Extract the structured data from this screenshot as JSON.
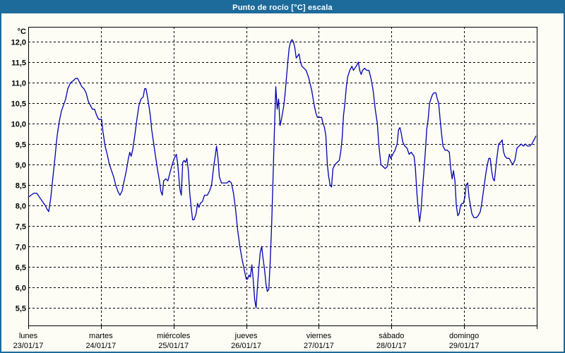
{
  "window": {
    "title": "Punto de rocío [°C] escala"
  },
  "colors": {
    "titlebar": "#1d6b9b",
    "frame_border": "#1d6b9b",
    "background": "#fdfdf6",
    "plot_background": "#fdfdf6",
    "grid": "#000000",
    "axis": "#000000",
    "line": "#0000b0",
    "text": "#000000",
    "title_text": "#ffffff"
  },
  "chart_data": {
    "type": "line",
    "title": "Punto de rocío [°C] escala",
    "y_unit_label": "°C",
    "ylabel": "",
    "xlabel": "",
    "ylim": [
      5.14,
      12.36
    ],
    "xlim_days": [
      0,
      7
    ],
    "grid": "dashed",
    "legend_position": "none",
    "y_ticks": [
      {
        "value": 12.0,
        "label": "12,0"
      },
      {
        "value": 11.5,
        "label": "11,5"
      },
      {
        "value": 11.0,
        "label": "11,0"
      },
      {
        "value": 10.5,
        "label": "10,5"
      },
      {
        "value": 10.0,
        "label": "10,0"
      },
      {
        "value": 9.5,
        "label": "9,5"
      },
      {
        "value": 9.0,
        "label": "9,0"
      },
      {
        "value": 8.5,
        "label": "8,5"
      },
      {
        "value": 8.0,
        "label": "8,0"
      },
      {
        "value": 7.5,
        "label": "7,5"
      },
      {
        "value": 7.0,
        "label": "7,0"
      },
      {
        "value": 6.5,
        "label": "6,5"
      },
      {
        "value": 6.0,
        "label": "6,0"
      },
      {
        "value": 5.5,
        "label": "5,5"
      }
    ],
    "x_ticks": [
      {
        "day": "lunes",
        "date": "23/01/17"
      },
      {
        "day": "martes",
        "date": "24/01/17"
      },
      {
        "day": "miércoles",
        "date": "25/01/17"
      },
      {
        "day": "jueves",
        "date": "26/01/17"
      },
      {
        "day": "viernes",
        "date": "27/01/17"
      },
      {
        "day": "sábado",
        "date": "28/01/17"
      },
      {
        "day": "domingo",
        "date": "29/01/17"
      }
    ],
    "series": [
      {
        "name": "Punto de rocío [°C]",
        "color": "#0000b0",
        "x_unit": "days_since_2017-01-23",
        "points": [
          [
            0.0,
            8.2
          ],
          [
            0.039,
            8.25
          ],
          [
            0.078,
            8.3
          ],
          [
            0.117,
            8.3
          ],
          [
            0.155,
            8.2
          ],
          [
            0.194,
            8.1
          ],
          [
            0.233,
            8.0
          ],
          [
            0.262,
            7.9
          ],
          [
            0.282,
            7.85
          ],
          [
            0.311,
            8.2
          ],
          [
            0.34,
            8.7
          ],
          [
            0.369,
            9.2
          ],
          [
            0.398,
            9.7
          ],
          [
            0.427,
            10.05
          ],
          [
            0.456,
            10.3
          ],
          [
            0.485,
            10.45
          ],
          [
            0.515,
            10.6
          ],
          [
            0.544,
            10.85
          ],
          [
            0.583,
            11.0
          ],
          [
            0.621,
            11.05
          ],
          [
            0.65,
            11.1
          ],
          [
            0.68,
            11.1
          ],
          [
            0.709,
            11.0
          ],
          [
            0.738,
            10.9
          ],
          [
            0.767,
            10.85
          ],
          [
            0.796,
            10.75
          ],
          [
            0.825,
            10.55
          ],
          [
            0.854,
            10.45
          ],
          [
            0.883,
            10.35
          ],
          [
            0.913,
            10.35
          ],
          [
            0.942,
            10.2
          ],
          [
            0.971,
            10.1
          ],
          [
            1.01,
            10.1
          ],
          [
            1.029,
            9.8
          ],
          [
            1.058,
            9.45
          ],
          [
            1.087,
            9.25
          ],
          [
            1.117,
            9.0
          ],
          [
            1.146,
            8.85
          ],
          [
            1.175,
            8.7
          ],
          [
            1.204,
            8.5
          ],
          [
            1.233,
            8.35
          ],
          [
            1.262,
            8.25
          ],
          [
            1.291,
            8.35
          ],
          [
            1.32,
            8.6
          ],
          [
            1.35,
            8.85
          ],
          [
            1.379,
            9.15
          ],
          [
            1.398,
            9.3
          ],
          [
            1.417,
            9.2
          ],
          [
            1.437,
            9.35
          ],
          [
            1.466,
            9.7
          ],
          [
            1.495,
            10.1
          ],
          [
            1.524,
            10.45
          ],
          [
            1.553,
            10.6
          ],
          [
            1.583,
            10.65
          ],
          [
            1.602,
            10.85
          ],
          [
            1.621,
            10.85
          ],
          [
            1.641,
            10.65
          ],
          [
            1.66,
            10.45
          ],
          [
            1.68,
            10.2
          ],
          [
            1.699,
            9.85
          ],
          [
            1.728,
            9.5
          ],
          [
            1.748,
            9.25
          ],
          [
            1.777,
            8.9
          ],
          [
            1.806,
            8.6
          ],
          [
            1.825,
            8.35
          ],
          [
            1.845,
            8.25
          ],
          [
            1.864,
            8.6
          ],
          [
            1.893,
            8.65
          ],
          [
            1.922,
            8.6
          ],
          [
            1.951,
            8.8
          ],
          [
            1.981,
            9.0
          ],
          [
            2.01,
            9.15
          ],
          [
            2.039,
            9.25
          ],
          [
            2.058,
            9.0
          ],
          [
            2.087,
            8.4
          ],
          [
            2.107,
            8.25
          ],
          [
            2.126,
            9.05
          ],
          [
            2.146,
            9.1
          ],
          [
            2.165,
            9.05
          ],
          [
            2.184,
            9.15
          ],
          [
            2.204,
            8.85
          ],
          [
            2.223,
            8.3
          ],
          [
            2.243,
            7.95
          ],
          [
            2.262,
            7.65
          ],
          [
            2.282,
            7.65
          ],
          [
            2.311,
            7.8
          ],
          [
            2.33,
            8.05
          ],
          [
            2.35,
            7.95
          ],
          [
            2.369,
            8.05
          ],
          [
            2.398,
            8.1
          ],
          [
            2.427,
            8.25
          ],
          [
            2.466,
            8.25
          ],
          [
            2.495,
            8.35
          ],
          [
            2.524,
            8.5
          ],
          [
            2.553,
            8.95
          ],
          [
            2.573,
            9.2
          ],
          [
            2.592,
            9.45
          ],
          [
            2.612,
            9.15
          ],
          [
            2.631,
            8.7
          ],
          [
            2.66,
            8.55
          ],
          [
            2.699,
            8.55
          ],
          [
            2.738,
            8.55
          ],
          [
            2.767,
            8.6
          ],
          [
            2.796,
            8.55
          ],
          [
            2.825,
            8.3
          ],
          [
            2.854,
            7.9
          ],
          [
            2.883,
            7.4
          ],
          [
            2.913,
            7.0
          ],
          [
            2.942,
            6.7
          ],
          [
            2.971,
            6.45
          ],
          [
            3.0,
            6.2
          ],
          [
            3.019,
            6.2
          ],
          [
            3.039,
            6.3
          ],
          [
            3.058,
            6.25
          ],
          [
            3.078,
            6.55
          ],
          [
            3.097,
            6.2
          ],
          [
            3.117,
            5.7
          ],
          [
            3.136,
            5.5
          ],
          [
            3.155,
            6.0
          ],
          [
            3.175,
            6.5
          ],
          [
            3.194,
            6.85
          ],
          [
            3.214,
            7.0
          ],
          [
            3.233,
            6.7
          ],
          [
            3.252,
            6.45
          ],
          [
            3.272,
            6.1
          ],
          [
            3.291,
            5.9
          ],
          [
            3.311,
            5.95
          ],
          [
            3.33,
            6.6
          ],
          [
            3.35,
            7.5
          ],
          [
            3.369,
            8.6
          ],
          [
            3.388,
            9.8
          ],
          [
            3.408,
            10.9
          ],
          [
            3.427,
            10.35
          ],
          [
            3.447,
            10.6
          ],
          [
            3.466,
            9.95
          ],
          [
            3.485,
            10.1
          ],
          [
            3.515,
            10.4
          ],
          [
            3.534,
            10.7
          ],
          [
            3.553,
            11.1
          ],
          [
            3.573,
            11.5
          ],
          [
            3.592,
            11.85
          ],
          [
            3.612,
            12.0
          ],
          [
            3.631,
            12.05
          ],
          [
            3.65,
            12.0
          ],
          [
            3.67,
            11.85
          ],
          [
            3.689,
            11.6
          ],
          [
            3.709,
            11.65
          ],
          [
            3.728,
            11.7
          ],
          [
            3.748,
            11.5
          ],
          [
            3.767,
            11.4
          ],
          [
            3.796,
            11.35
          ],
          [
            3.825,
            11.3
          ],
          [
            3.845,
            11.2
          ],
          [
            3.864,
            11.1
          ],
          [
            3.883,
            10.95
          ],
          [
            3.903,
            10.8
          ],
          [
            3.922,
            10.6
          ],
          [
            3.942,
            10.4
          ],
          [
            3.961,
            10.25
          ],
          [
            3.981,
            10.15
          ],
          [
            4.01,
            10.15
          ],
          [
            4.039,
            10.15
          ],
          [
            4.058,
            10.0
          ],
          [
            4.078,
            9.9
          ],
          [
            4.097,
            9.7
          ],
          [
            4.117,
            9.0
          ],
          [
            4.136,
            8.7
          ],
          [
            4.155,
            8.5
          ],
          [
            4.175,
            8.45
          ],
          [
            4.194,
            8.9
          ],
          [
            4.223,
            9.0
          ],
          [
            4.252,
            9.05
          ],
          [
            4.282,
            9.1
          ],
          [
            4.301,
            9.3
          ],
          [
            4.32,
            9.6
          ],
          [
            4.34,
            10.2
          ],
          [
            4.359,
            10.5
          ],
          [
            4.379,
            10.9
          ],
          [
            4.398,
            11.15
          ],
          [
            4.427,
            11.3
          ],
          [
            4.456,
            11.4
          ],
          [
            4.476,
            11.3
          ],
          [
            4.495,
            11.35
          ],
          [
            4.515,
            11.4
          ],
          [
            4.544,
            11.5
          ],
          [
            4.563,
            11.3
          ],
          [
            4.583,
            11.2
          ],
          [
            4.602,
            11.3
          ],
          [
            4.631,
            11.35
          ],
          [
            4.66,
            11.3
          ],
          [
            4.689,
            11.3
          ],
          [
            4.718,
            11.1
          ],
          [
            4.748,
            10.8
          ],
          [
            4.777,
            10.35
          ],
          [
            4.806,
            10.0
          ],
          [
            4.825,
            9.5
          ],
          [
            4.854,
            9.0
          ],
          [
            4.883,
            8.95
          ],
          [
            4.913,
            8.9
          ],
          [
            4.942,
            8.95
          ],
          [
            4.971,
            9.25
          ],
          [
            4.99,
            9.15
          ],
          [
            5.019,
            9.25
          ],
          [
            5.049,
            9.35
          ],
          [
            5.078,
            9.5
          ],
          [
            5.097,
            9.85
          ],
          [
            5.117,
            9.9
          ],
          [
            5.136,
            9.75
          ],
          [
            5.155,
            9.55
          ],
          [
            5.184,
            9.45
          ],
          [
            5.214,
            9.4
          ],
          [
            5.243,
            9.25
          ],
          [
            5.272,
            9.3
          ],
          [
            5.291,
            9.25
          ],
          [
            5.311,
            9.2
          ],
          [
            5.33,
            8.9
          ],
          [
            5.35,
            8.3
          ],
          [
            5.369,
            7.9
          ],
          [
            5.388,
            7.6
          ],
          [
            5.408,
            7.9
          ],
          [
            5.427,
            8.4
          ],
          [
            5.447,
            8.85
          ],
          [
            5.466,
            9.3
          ],
          [
            5.485,
            9.85
          ],
          [
            5.505,
            10.1
          ],
          [
            5.524,
            10.5
          ],
          [
            5.544,
            10.6
          ],
          [
            5.563,
            10.7
          ],
          [
            5.583,
            10.75
          ],
          [
            5.612,
            10.75
          ],
          [
            5.631,
            10.6
          ],
          [
            5.65,
            10.5
          ],
          [
            5.67,
            10.1
          ],
          [
            5.689,
            9.75
          ],
          [
            5.709,
            9.45
          ],
          [
            5.738,
            9.35
          ],
          [
            5.767,
            9.35
          ],
          [
            5.796,
            9.3
          ],
          [
            5.816,
            8.9
          ],
          [
            5.835,
            8.65
          ],
          [
            5.854,
            8.85
          ],
          [
            5.874,
            8.6
          ],
          [
            5.893,
            8.0
          ],
          [
            5.913,
            7.75
          ],
          [
            5.932,
            7.8
          ],
          [
            5.951,
            8.0
          ],
          [
            5.971,
            8.05
          ],
          [
            5.99,
            8.05
          ],
          [
            6.01,
            8.2
          ],
          [
            6.029,
            8.5
          ],
          [
            6.049,
            8.55
          ],
          [
            6.068,
            8.2
          ],
          [
            6.087,
            8.0
          ],
          [
            6.107,
            7.8
          ],
          [
            6.136,
            7.7
          ],
          [
            6.165,
            7.7
          ],
          [
            6.194,
            7.75
          ],
          [
            6.223,
            7.85
          ],
          [
            6.243,
            8.05
          ],
          [
            6.262,
            8.3
          ],
          [
            6.282,
            8.55
          ],
          [
            6.301,
            8.8
          ],
          [
            6.32,
            9.0
          ],
          [
            6.34,
            9.15
          ],
          [
            6.359,
            9.15
          ],
          [
            6.379,
            8.85
          ],
          [
            6.398,
            8.65
          ],
          [
            6.417,
            8.6
          ],
          [
            6.447,
            9.1
          ],
          [
            6.476,
            9.5
          ],
          [
            6.505,
            9.55
          ],
          [
            6.524,
            9.6
          ],
          [
            6.544,
            9.3
          ],
          [
            6.563,
            9.2
          ],
          [
            6.592,
            9.15
          ],
          [
            6.621,
            9.15
          ],
          [
            6.65,
            9.05
          ],
          [
            6.67,
            9.0
          ],
          [
            6.699,
            9.1
          ],
          [
            6.728,
            9.4
          ],
          [
            6.757,
            9.45
          ],
          [
            6.786,
            9.5
          ],
          [
            6.816,
            9.45
          ],
          [
            6.845,
            9.5
          ],
          [
            6.874,
            9.45
          ],
          [
            6.903,
            9.45
          ],
          [
            6.932,
            9.5
          ],
          [
            6.961,
            9.6
          ],
          [
            6.99,
            9.7
          ]
        ]
      }
    ]
  }
}
